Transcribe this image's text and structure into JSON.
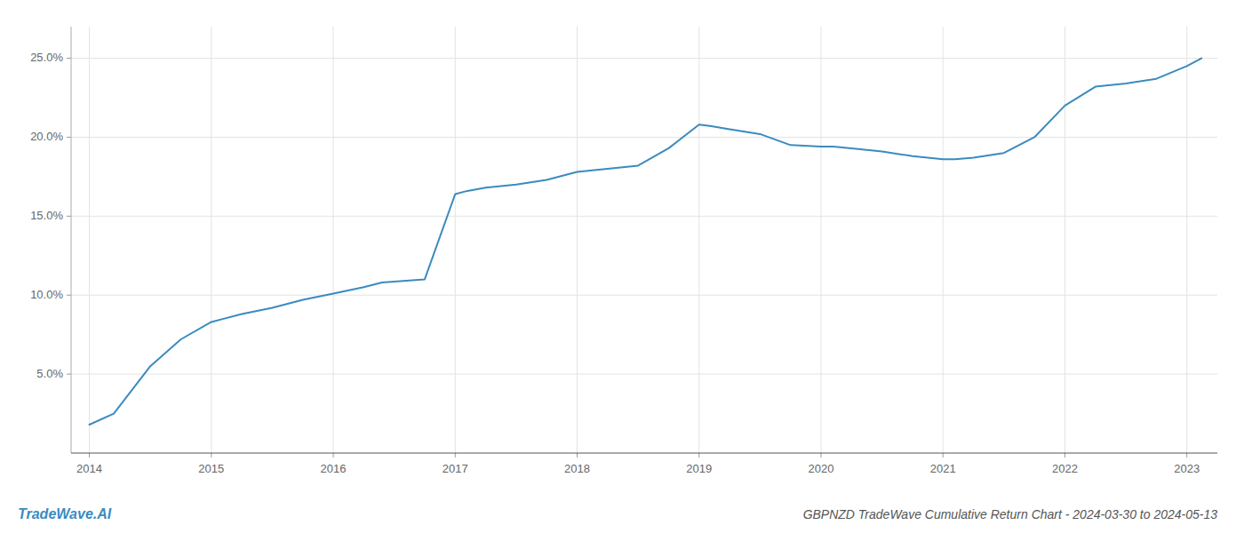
{
  "chart_data": {
    "type": "line",
    "title": "GBPNZD TradeWave Cumulative Return Chart - 2024-03-30 to 2024-05-13",
    "annotations": [
      "TradeWave.AI"
    ],
    "color": "#3a8bbf",
    "x": [
      2014.0,
      2014.2,
      2014.5,
      2014.75,
      2015.0,
      2015.1,
      2015.25,
      2015.5,
      2015.75,
      2016.0,
      2016.25,
      2016.4,
      2016.75,
      2017.0,
      2017.1,
      2017.25,
      2017.5,
      2017.75,
      2018.0,
      2018.25,
      2018.5,
      2018.75,
      2019.0,
      2019.1,
      2019.25,
      2019.5,
      2019.75,
      2020.0,
      2020.1,
      2020.25,
      2020.5,
      2020.75,
      2021.0,
      2021.1,
      2021.25,
      2021.5,
      2021.75,
      2022.0,
      2022.25,
      2022.5,
      2022.75,
      2023.0,
      2023.12
    ],
    "values": [
      1.8,
      2.5,
      5.5,
      7.2,
      8.3,
      8.5,
      8.8,
      9.2,
      9.7,
      10.1,
      10.5,
      10.8,
      11.0,
      16.4,
      16.6,
      16.8,
      17.0,
      17.3,
      17.8,
      18.0,
      18.2,
      19.3,
      20.8,
      20.7,
      20.5,
      20.2,
      19.5,
      19.4,
      19.4,
      19.3,
      19.1,
      18.8,
      18.6,
      18.6,
      18.7,
      19.0,
      20.0,
      22.0,
      23.2,
      23.4,
      23.7,
      24.5,
      25.0
    ],
    "xlim": [
      2013.85,
      2023.25
    ],
    "ylim": [
      0,
      27
    ],
    "xticks": [
      2014,
      2015,
      2016,
      2017,
      2018,
      2019,
      2020,
      2021,
      2022,
      2023
    ],
    "yticks": [
      {
        "value": 5.0,
        "label": "5.0%"
      },
      {
        "value": 10.0,
        "label": "10.0%"
      },
      {
        "value": 15.0,
        "label": "15.0%"
      },
      {
        "value": 20.0,
        "label": "20.0%"
      },
      {
        "value": 25.0,
        "label": "25.0%"
      }
    ],
    "grid": true
  }
}
